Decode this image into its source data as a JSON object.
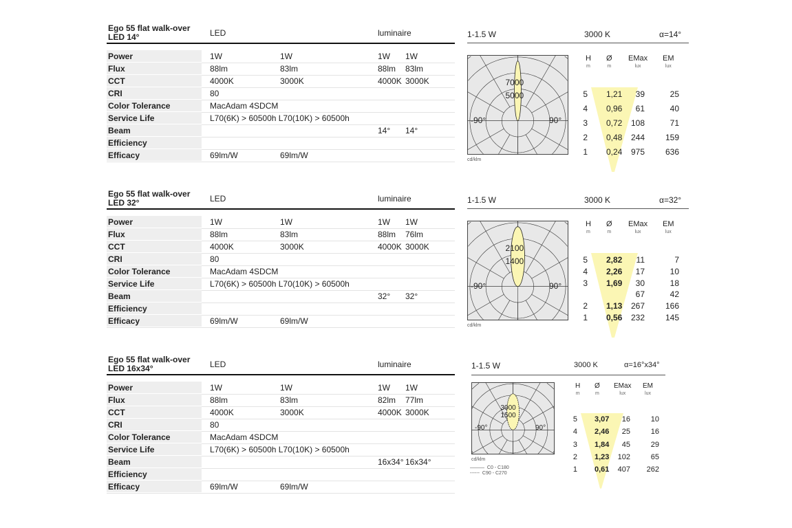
{
  "row_labels": [
    "Power",
    "Flux",
    "CCT",
    "CRI",
    "Color Tolerance",
    "Service Life",
    "Beam",
    "Efficiency",
    "Efficacy"
  ],
  "col_led": "LED",
  "col_lum": "luminaire",
  "sections": [
    {
      "title1": "Ego 55 flat walk-over",
      "title2": "LED 14°",
      "rows": [
        [
          "1W",
          "1W",
          "1W",
          "1W"
        ],
        [
          "88lm",
          "83lm",
          "88lm",
          "83lm"
        ],
        [
          "4000K",
          "3000K",
          "4000K",
          "3000K"
        ],
        [
          "80",
          "",
          "",
          ""
        ],
        [
          "MacAdam 4SDCM",
          "",
          "",
          ""
        ],
        [
          "L70(6K) > 60500h L70(10K) > 60500h",
          "",
          "",
          ""
        ],
        [
          "",
          "",
          "14°",
          "14°"
        ],
        [
          "",
          "",
          "",
          ""
        ],
        [
          "69lm/W",
          "69lm/W",
          "",
          ""
        ]
      ],
      "power": "1-1.5 W",
      "cct": "3000 K",
      "alpha": "α=14°",
      "polar": [
        "7000",
        "5000"
      ],
      "deg_l": "-90°",
      "deg_r": "90°",
      "unit": "cd/klm",
      "table": [
        [
          "5",
          "1,21",
          "39",
          "25"
        ],
        [
          "4",
          "0,96",
          "61",
          "40"
        ],
        [
          "3",
          "0,72",
          "108",
          "71"
        ],
        [
          "2",
          "0,48",
          "244",
          "159"
        ],
        [
          "1",
          "0,24",
          "975",
          "636"
        ]
      ]
    },
    {
      "title1": "Ego 55 flat walk-over",
      "title2": "LED 32°",
      "rows": [
        [
          "1W",
          "1W",
          "1W",
          "1W"
        ],
        [
          "88lm",
          "83lm",
          "88lm",
          "76lm"
        ],
        [
          "4000K",
          "3000K",
          "4000K",
          "3000K"
        ],
        [
          "80",
          "",
          "",
          ""
        ],
        [
          "MacAdam 4SDCM",
          "",
          "",
          ""
        ],
        [
          "L70(6K) > 60500h L70(10K) > 60500h",
          "",
          "",
          ""
        ],
        [
          "",
          "",
          "32°",
          "32°"
        ],
        [
          "",
          "",
          "",
          ""
        ],
        [
          "69lm/W",
          "69lm/W",
          "",
          ""
        ]
      ],
      "power": "1-1.5 W",
      "cct": "3000 K",
      "alpha": "α=32°",
      "polar": [
        "2100",
        "1400"
      ],
      "deg_l": "-90°",
      "deg_r": "90°",
      "unit": "cd/klm",
      "table": [
        [
          "5",
          "2,82",
          "11",
          "7"
        ],
        [
          "4",
          "2,26",
          "17",
          "10"
        ],
        [
          "3",
          "1,69",
          "30",
          "18"
        ],
        [
          "",
          "",
          "67",
          "42"
        ],
        [
          "2",
          "1,13",
          "267",
          "166"
        ],
        [
          "1",
          "0,56",
          "232",
          "145"
        ]
      ]
    },
    {
      "title1": "Ego 55 flat walk-over",
      "title2": "LED 16x34°",
      "rows": [
        [
          "1W",
          "1W",
          "1W",
          "1W"
        ],
        [
          "88lm",
          "83lm",
          "82lm",
          "77lm"
        ],
        [
          "4000K",
          "3000K",
          "4000K",
          "3000K"
        ],
        [
          "80",
          "",
          "",
          ""
        ],
        [
          "MacAdam 4SDCM",
          "",
          "",
          ""
        ],
        [
          "L70(6K) > 60500h L70(10K) > 60500h",
          "",
          "",
          ""
        ],
        [
          "",
          "",
          "16x34°",
          "16x34°"
        ],
        [
          "",
          "",
          "",
          ""
        ],
        [
          "69lm/W",
          "69lm/W",
          "",
          ""
        ]
      ],
      "power": "1-1.5 W",
      "cct": "3000 K",
      "alpha": "α=16°x34°",
      "polar": [
        "3000",
        "1500"
      ],
      "deg_l": "-90°",
      "deg_r": "90°",
      "unit": "cd/klm",
      "legend": [
        "C0  - C180",
        "C90 - C270"
      ],
      "table": [
        [
          "5",
          "3,07",
          "16",
          "10"
        ],
        [
          "4",
          "2,46",
          "25",
          "16"
        ],
        [
          "3",
          "1,84",
          "45",
          "29"
        ],
        [
          "2",
          "1,23",
          "102",
          "65"
        ],
        [
          "1",
          "0,61",
          "407",
          "262"
        ]
      ]
    }
  ],
  "th": {
    "h": "H",
    "hu": "m",
    "d": "Ø",
    "du": "m",
    "emax": "EMax",
    "emaxu": "lux",
    "em": "EM",
    "emu": "lux"
  },
  "colors": {
    "beam": "#fbf6b4",
    "grid": "#e8e8e8"
  }
}
